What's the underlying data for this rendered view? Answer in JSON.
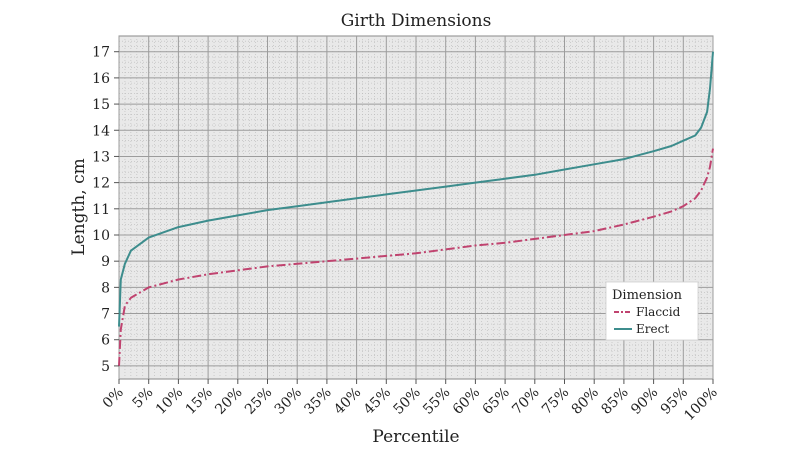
{
  "chart_data": {
    "type": "line",
    "title": "Girth Dimensions",
    "xlabel": "Percentile",
    "ylabel": "Length, cm",
    "xlim": [
      0,
      100
    ],
    "ylim": [
      4.5,
      17.6
    ],
    "x_ticks": [
      "0%",
      "5%",
      "10%",
      "15%",
      "20%",
      "25%",
      "30%",
      "35%",
      "40%",
      "45%",
      "50%",
      "55%",
      "60%",
      "65%",
      "70%",
      "75%",
      "80%",
      "85%",
      "90%",
      "95%",
      "100%"
    ],
    "y_ticks": [
      5,
      6,
      7,
      8,
      9,
      10,
      11,
      12,
      13,
      14,
      15,
      16,
      17
    ],
    "grid": true,
    "legend": {
      "title": "Dimension",
      "position": "right"
    },
    "series": [
      {
        "name": "Flaccid",
        "color": "#c0436f",
        "style": "dashdot",
        "x": [
          0,
          0.3,
          1,
          2,
          5,
          10,
          15,
          20,
          25,
          30,
          35,
          40,
          45,
          50,
          55,
          60,
          65,
          70,
          75,
          80,
          85,
          90,
          93,
          95,
          97,
          98,
          99,
          99.5,
          100
        ],
        "y": [
          5.0,
          6.4,
          7.3,
          7.6,
          8.0,
          8.3,
          8.5,
          8.65,
          8.8,
          8.9,
          9.0,
          9.1,
          9.2,
          9.3,
          9.45,
          9.6,
          9.7,
          9.85,
          10.0,
          10.15,
          10.4,
          10.7,
          10.9,
          11.1,
          11.4,
          11.7,
          12.2,
          12.6,
          13.3
        ]
      },
      {
        "name": "Erect",
        "color": "#3d8d8d",
        "style": "solid",
        "x": [
          0,
          0.3,
          1,
          2,
          5,
          10,
          15,
          20,
          25,
          30,
          35,
          40,
          45,
          50,
          55,
          60,
          65,
          70,
          75,
          80,
          85,
          90,
          93,
          95,
          97,
          98,
          99,
          99.5,
          100
        ],
        "y": [
          6.5,
          8.3,
          8.9,
          9.4,
          9.9,
          10.3,
          10.55,
          10.75,
          10.95,
          11.1,
          11.25,
          11.4,
          11.55,
          11.7,
          11.85,
          12.0,
          12.15,
          12.3,
          12.5,
          12.7,
          12.9,
          13.2,
          13.4,
          13.6,
          13.8,
          14.1,
          14.7,
          15.6,
          17.0
        ]
      }
    ]
  }
}
